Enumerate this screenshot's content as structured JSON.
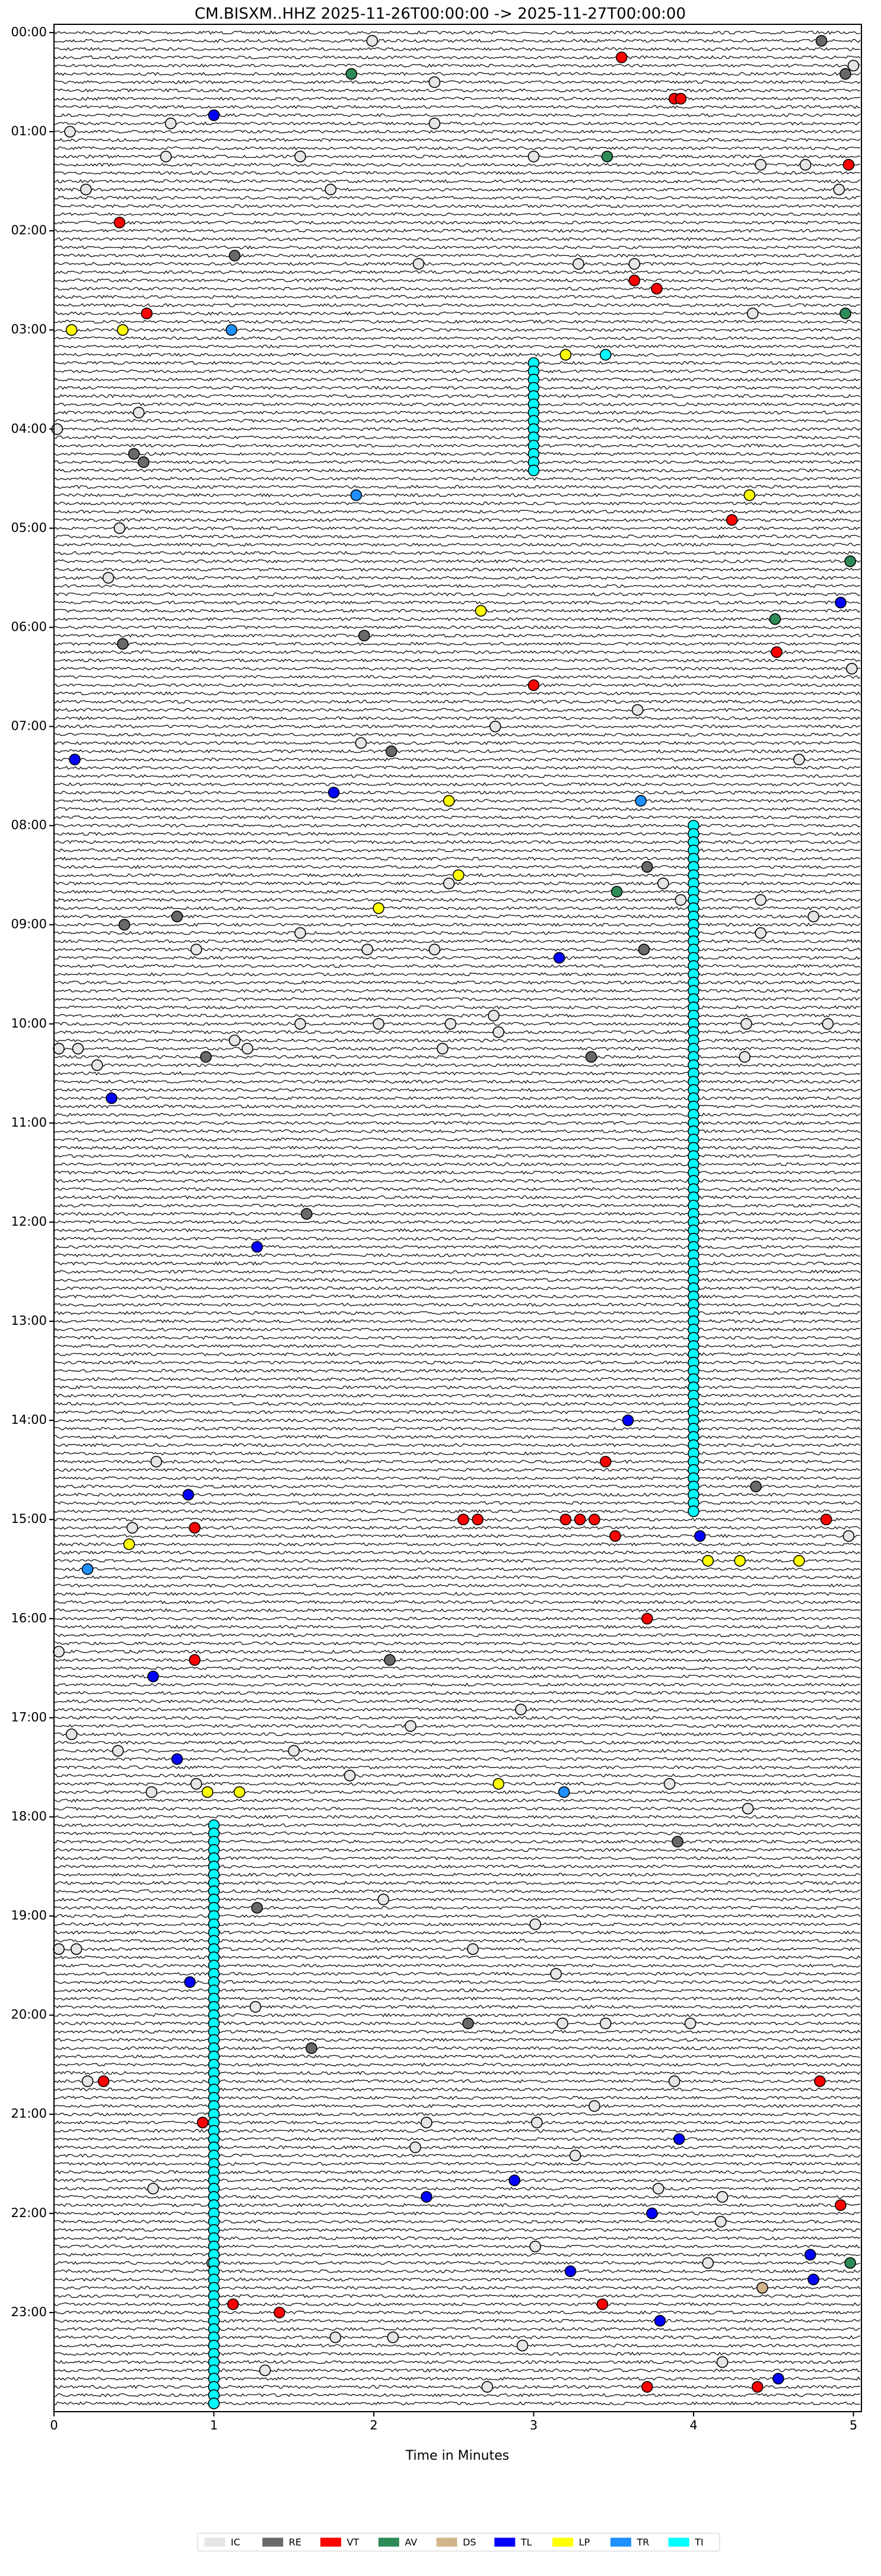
{
  "chart_data": {
    "type": "scatter",
    "title": "CM.BISXM..HHZ  2025-11-26T00:00:00 -> 2025-11-27T00:00:00",
    "xlabel": "Time in Minutes",
    "xlim": [
      0,
      5.05
    ],
    "xticks": [
      0,
      1,
      2,
      3,
      4,
      5
    ],
    "ylim": [
      -5,
      1440
    ],
    "yticks": [
      {
        "value": 0,
        "label": "00:00"
      },
      {
        "value": 60,
        "label": "01:00"
      },
      {
        "value": 120,
        "label": "02:00"
      },
      {
        "value": 180,
        "label": "03:00"
      },
      {
        "value": 240,
        "label": "04:00"
      },
      {
        "value": 300,
        "label": "05:00"
      },
      {
        "value": 360,
        "label": "06:00"
      },
      {
        "value": 420,
        "label": "07:00"
      },
      {
        "value": 480,
        "label": "08:00"
      },
      {
        "value": 540,
        "label": "09:00"
      },
      {
        "value": 600,
        "label": "10:00"
      },
      {
        "value": 660,
        "label": "11:00"
      },
      {
        "value": 720,
        "label": "12:00"
      },
      {
        "value": 780,
        "label": "13:00"
      },
      {
        "value": 840,
        "label": "14:00"
      },
      {
        "value": 900,
        "label": "15:00"
      },
      {
        "value": 960,
        "label": "16:00"
      },
      {
        "value": 1020,
        "label": "17:00"
      },
      {
        "value": 1080,
        "label": "18:00"
      },
      {
        "value": 1140,
        "label": "19:00"
      },
      {
        "value": 1200,
        "label": "20:00"
      },
      {
        "value": 1260,
        "label": "21:00"
      },
      {
        "value": 1320,
        "label": "22:00"
      },
      {
        "value": 1380,
        "label": "23:00"
      }
    ],
    "series": [
      {
        "name": "IC",
        "color": "#e6e6e6",
        "x": [
          1.99,
          5.0,
          2.38,
          0.73,
          2.38,
          0.1,
          0.7,
          1.54,
          3.0,
          4.42,
          4.7,
          0.2,
          1.73,
          4.91,
          2.28,
          3.28,
          3.63,
          4.37,
          0.02,
          0.53,
          0.41,
          0.34,
          4.99,
          3.65,
          2.76,
          1.92,
          4.66,
          2.47,
          3.81,
          3.92,
          4.42,
          4.75,
          1.54,
          4.42,
          0.89,
          1.96,
          2.38,
          0.03,
          0.15,
          1.13,
          1.21,
          2.43,
          2.78,
          4.33,
          4.84,
          1.54,
          2.03,
          2.48,
          2.75,
          4.32,
          0.27,
          0.64,
          0.49,
          4.97,
          0.03,
          2.92,
          2.23,
          0.11,
          0.4,
          1.5,
          1.85,
          0.61,
          0.89,
          3.85,
          4.34,
          2.06,
          3.01,
          0.14,
          0.03,
          2.62,
          3.14,
          1.26,
          3.18,
          3.45,
          3.98,
          0.21,
          3.88,
          3.38,
          2.33,
          3.02,
          2.26,
          3.26,
          0.62,
          3.78,
          4.18,
          4.17,
          3.01,
          0.99,
          4.09,
          1.76,
          2.12,
          2.93,
          4.18,
          1.32,
          2.71
        ],
        "values": [
          5,
          20,
          30,
          55,
          55,
          60,
          75,
          75,
          75,
          80,
          80,
          95,
          95,
          95,
          140,
          140,
          140,
          170,
          240,
          230,
          300,
          330,
          385,
          410,
          420,
          430,
          440,
          515,
          515,
          525,
          525,
          535,
          545,
          545,
          555,
          555,
          555,
          615,
          615,
          610,
          615,
          615,
          605,
          600,
          600,
          600,
          600,
          600,
          595,
          620,
          625,
          865,
          905,
          910,
          980,
          1015,
          1025,
          1030,
          1040,
          1040,
          1055,
          1065,
          1060,
          1060,
          1075,
          1130,
          1145,
          1160,
          1160,
          1160,
          1175,
          1195,
          1205,
          1205,
          1205,
          1240,
          1240,
          1255,
          1265,
          1265,
          1280,
          1285,
          1305,
          1305,
          1310,
          1325,
          1340,
          1350,
          1350,
          1395,
          1395,
          1400,
          1410,
          1415,
          1425
        ]
      },
      {
        "name": "RE",
        "color": "#696969",
        "x": [
          4.8,
          4.95,
          1.13,
          0.5,
          0.56,
          1.94,
          0.43,
          2.11,
          3.71,
          0.44,
          0.77,
          3.69,
          0.95,
          3.36,
          1.58,
          4.39,
          2.1,
          3.9,
          1.27,
          2.59,
          1.61
        ],
        "values": [
          5,
          25,
          135,
          255,
          260,
          365,
          370,
          435,
          505,
          540,
          535,
          555,
          620,
          620,
          715,
          880,
          985,
          1095,
          1135,
          1205,
          1220
        ]
      },
      {
        "name": "VT",
        "color": "#ff0000",
        "x": [
          3.55,
          3.88,
          3.92,
          4.97,
          0.41,
          3.63,
          3.77,
          0.58,
          4.24,
          4.52,
          3.0,
          3.45,
          2.56,
          2.65,
          3.2,
          3.29,
          3.38,
          4.83,
          0.88,
          3.51,
          3.71,
          0.88,
          0.31,
          4.79,
          0.93,
          4.92,
          1.12,
          1.41,
          3.43,
          3.71,
          4.4
        ],
        "values": [
          15,
          40,
          40,
          80,
          115,
          150,
          155,
          170,
          295,
          375,
          395,
          865,
          900,
          900,
          900,
          900,
          900,
          900,
          905,
          910,
          960,
          985,
          1240,
          1240,
          1265,
          1315,
          1375,
          1380,
          1375,
          1425,
          1425
        ]
      },
      {
        "name": "AV",
        "color": "#2e8b57",
        "x": [
          1.86,
          3.46,
          4.95,
          4.98,
          4.51,
          3.52,
          4.98
        ],
        "values": [
          25,
          75,
          170,
          320,
          355,
          520,
          1350
        ]
      },
      {
        "name": "DS",
        "color": "#d2b48c",
        "x": [
          4.43
        ],
        "values": [
          1365
        ]
      },
      {
        "name": "TL",
        "color": "#0000ff",
        "x": [
          1.0,
          4.92,
          0.13,
          1.75,
          3.16,
          0.36,
          1.27,
          3.59,
          0.84,
          4.04,
          0.62,
          0.77,
          0.85,
          3.91,
          2.88,
          2.33,
          3.74,
          4.73,
          3.23,
          4.75,
          3.79,
          4.53
        ],
        "values": [
          50,
          345,
          440,
          460,
          560,
          645,
          735,
          840,
          885,
          910,
          995,
          1045,
          1180,
          1275,
          1300,
          1310,
          1320,
          1345,
          1355,
          1360,
          1385,
          1420
        ]
      },
      {
        "name": "LP",
        "color": "#ffff00",
        "x": [
          0.11,
          0.43,
          3.2,
          4.35,
          2.67,
          2.47,
          2.53,
          2.03,
          0.47,
          4.09,
          4.29,
          4.66,
          2.78,
          0.96,
          1.16
        ],
        "values": [
          180,
          180,
          195,
          280,
          350,
          465,
          510,
          530,
          915,
          925,
          925,
          925,
          1060,
          1065,
          1065
        ]
      },
      {
        "name": "TR",
        "color": "#1e90ff",
        "x": [
          1.11,
          1.89,
          3.67,
          0.21,
          3.19
        ],
        "values": [
          180,
          280,
          465,
          930,
          1065
        ]
      },
      {
        "name": "TI",
        "color": "#00ffff",
        "x": [
          3.45,
          3,
          3,
          3,
          3,
          3,
          3,
          3,
          3,
          3,
          3,
          3,
          3,
          3,
          3,
          4,
          4,
          4,
          4,
          4,
          4,
          4,
          4,
          4,
          4,
          4,
          4,
          4,
          4,
          4,
          4,
          4,
          4,
          4,
          4,
          4,
          4,
          4,
          4,
          4,
          4,
          4,
          4,
          4,
          4,
          4,
          4,
          4,
          4,
          4,
          4,
          4,
          4,
          4,
          4,
          4,
          4,
          4,
          4,
          4,
          4,
          4,
          4,
          4,
          4,
          4,
          4,
          4,
          4,
          4,
          4,
          4,
          4,
          4,
          4,
          4,
          4,
          4,
          4,
          4,
          4,
          4,
          4,
          4,
          4,
          4,
          4,
          4,
          4,
          4,
          4,
          4,
          4,
          4,
          4,
          4,
          4,
          4,
          4,
          1,
          1,
          1,
          1,
          1,
          1,
          1,
          1,
          1,
          1,
          1,
          1,
          1,
          1,
          1,
          1,
          1,
          1,
          1,
          1,
          1,
          1,
          1,
          1,
          1,
          1,
          1,
          1,
          1,
          1,
          1,
          1,
          1,
          1,
          1,
          1,
          1,
          1,
          1,
          1,
          1,
          1,
          1,
          1,
          1,
          1,
          1,
          1,
          1,
          1,
          1,
          1,
          1,
          1,
          1,
          1,
          1,
          1,
          1,
          1,
          1,
          1,
          1,
          1,
          1,
          1,
          1,
          1,
          1,
          1,
          1
        ],
        "values": [
          195,
          200,
          205,
          210,
          215,
          220,
          225,
          230,
          235,
          240,
          245,
          250,
          255,
          260,
          265,
          480,
          485,
          490,
          495,
          500,
          505,
          510,
          515,
          520,
          525,
          530,
          535,
          540,
          545,
          550,
          555,
          560,
          565,
          570,
          575,
          580,
          585,
          590,
          595,
          600,
          605,
          610,
          615,
          620,
          625,
          630,
          635,
          640,
          645,
          650,
          655,
          660,
          665,
          670,
          675,
          680,
          685,
          690,
          695,
          700,
          705,
          710,
          715,
          720,
          725,
          730,
          735,
          740,
          745,
          750,
          755,
          760,
          765,
          770,
          775,
          780,
          785,
          790,
          795,
          800,
          805,
          810,
          815,
          820,
          825,
          830,
          835,
          840,
          845,
          850,
          855,
          860,
          865,
          870,
          875,
          880,
          885,
          890,
          895,
          1085,
          1090,
          1095,
          1100,
          1105,
          1110,
          1115,
          1120,
          1125,
          1130,
          1135,
          1140,
          1145,
          1150,
          1155,
          1160,
          1165,
          1170,
          1175,
          1180,
          1185,
          1190,
          1195,
          1200,
          1205,
          1210,
          1215,
          1220,
          1225,
          1230,
          1235,
          1240,
          1245,
          1250,
          1255,
          1260,
          1265,
          1270,
          1275,
          1280,
          1285,
          1290,
          1295,
          1300,
          1305,
          1310,
          1315,
          1320,
          1325,
          1330,
          1335,
          1340,
          1345,
          1350,
          1355,
          1360,
          1365,
          1370,
          1375,
          1380,
          1385,
          1390,
          1395,
          1400,
          1405,
          1410,
          1415,
          1420,
          1425,
          1430,
          1435
        ]
      }
    ]
  }
}
